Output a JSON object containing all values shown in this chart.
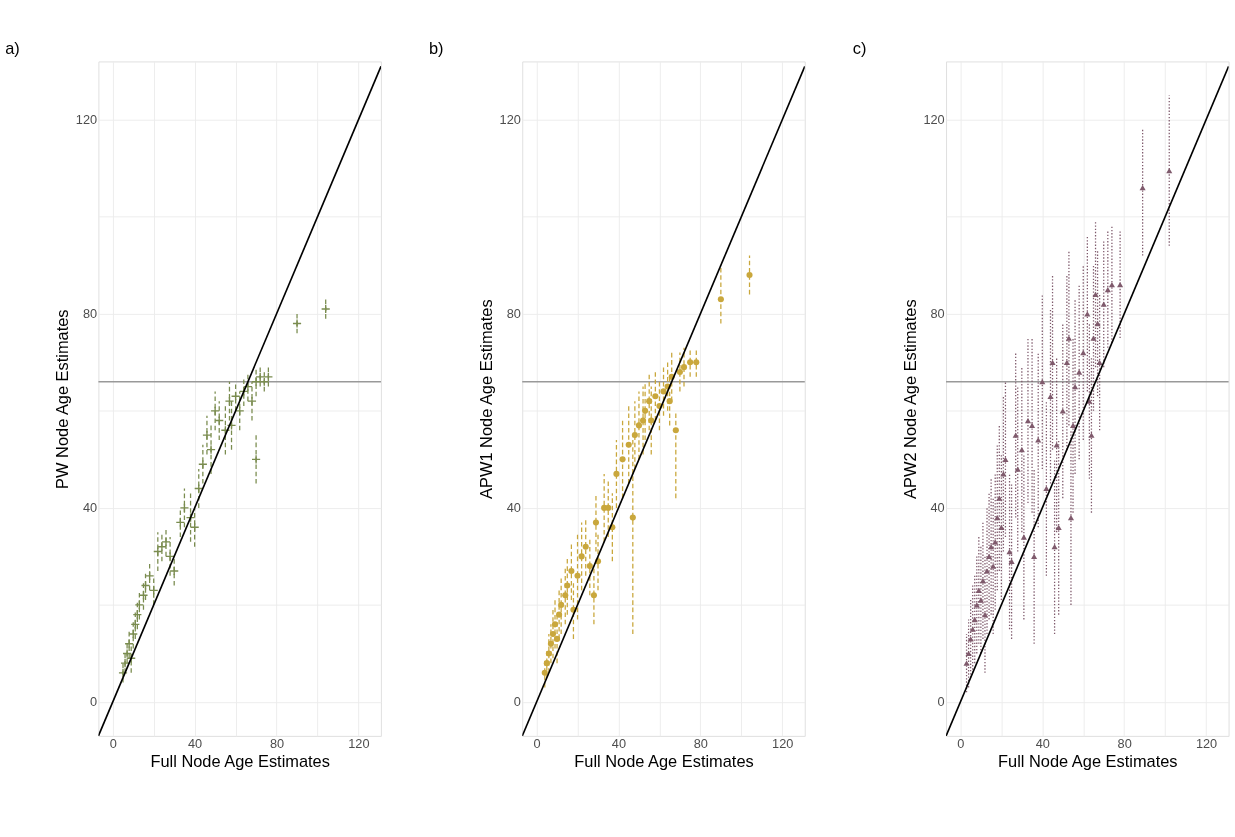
{
  "chart_data": [
    {
      "type": "scatter",
      "title": "a)",
      "xlabel": "Full Node Age Estimates",
      "ylabel": "PW Node Age Estimates",
      "xlim": [
        -7,
        131
      ],
      "ylim": [
        -7,
        132
      ],
      "xticks": [
        0,
        {
          "value": 20,
          "label": null
        },
        40,
        {
          "value": 60,
          "label": null
        },
        80,
        {
          "value": 100,
          "label": null
        },
        120
      ],
      "yticks": [
        0,
        {
          "value": 20,
          "label": null
        },
        40,
        {
          "value": 60,
          "label": null
        },
        80,
        {
          "value": 100,
          "label": null
        },
        120
      ],
      "grid": true,
      "ref_lines": [
        {
          "axis": "y",
          "value": 66,
          "color": "#999999"
        }
      ],
      "series": [
        {
          "color": "#7a8c4f",
          "marker": "cross",
          "line_style": "dashed",
          "x": [
            5,
            6,
            7,
            8,
            9,
            10,
            11,
            12,
            13,
            15,
            16,
            18,
            20,
            22,
            24,
            26,
            28,
            30,
            33,
            35,
            38,
            40,
            42,
            44,
            46,
            48,
            50,
            52,
            55,
            57,
            58,
            60,
            62,
            64,
            66,
            68,
            70,
            72,
            74,
            76,
            70,
            90,
            104
          ],
          "values": [
            6,
            8,
            10,
            12,
            9,
            14,
            16,
            18,
            20,
            22,
            24,
            26,
            23,
            31,
            32,
            33,
            30,
            27,
            37,
            40,
            38,
            36,
            44,
            49,
            55,
            52,
            60,
            58,
            56,
            62,
            57,
            63,
            60,
            64,
            65,
            62,
            66,
            67,
            66,
            67,
            50,
            78,
            81
          ],
          "errors": [
            2,
            2,
            2,
            3,
            3,
            3,
            3,
            3,
            3,
            3,
            3,
            3,
            3,
            4,
            3,
            3,
            4,
            3,
            3,
            4,
            5,
            4,
            4,
            4,
            4,
            5,
            4,
            4,
            5,
            4,
            5,
            3,
            4,
            3,
            3,
            4,
            3,
            2,
            2,
            2,
            [
              45,
              55
            ],
            2,
            2
          ]
        },
        {
          "type": "line",
          "color": "#000000",
          "x": [
            -7,
            131
          ],
          "values": [
            -7,
            131
          ]
        }
      ]
    },
    {
      "type": "scatter",
      "title": "b)",
      "xlabel": "Full Node Age Estimates",
      "ylabel": "APW1 Node Age Estimates",
      "xlim": [
        -7,
        131
      ],
      "ylim": [
        -7,
        132
      ],
      "xticks": [
        0,
        {
          "value": 20,
          "label": null
        },
        40,
        {
          "value": 60,
          "label": null
        },
        80,
        {
          "value": 100,
          "label": null
        },
        120
      ],
      "yticks": [
        0,
        {
          "value": 20,
          "label": null
        },
        40,
        {
          "value": 60,
          "label": null
        },
        80,
        {
          "value": 100,
          "label": null
        },
        120
      ],
      "grid": true,
      "ref_lines": [
        {
          "axis": "y",
          "value": 66,
          "color": "#999999"
        }
      ],
      "series": [
        {
          "color": "#c9a73c",
          "marker": "circle",
          "line_style": "dashed",
          "x": [
            4,
            5,
            6,
            7,
            8,
            9,
            10,
            11,
            12,
            14,
            15,
            17,
            18,
            20,
            22,
            24,
            26,
            28,
            29,
            30,
            33,
            35,
            37,
            39,
            42,
            45,
            47,
            48,
            50,
            52,
            53,
            55,
            56,
            58,
            60,
            62,
            64,
            65,
            66,
            68,
            70,
            72,
            75,
            78,
            90,
            104
          ],
          "values": [
            6,
            8,
            10,
            12,
            14,
            16,
            13,
            18,
            20,
            22,
            24,
            27,
            19,
            26,
            30,
            32,
            28,
            22,
            37,
            29,
            40,
            40,
            36,
            47,
            50,
            53,
            38,
            55,
            57,
            58,
            60,
            62,
            58,
            63,
            61,
            64,
            65,
            62,
            67,
            56,
            68,
            69,
            70,
            70,
            83,
            88
          ],
          "errors": [
            3,
            3,
            4,
            4,
            5,
            5,
            5,
            5,
            6,
            6,
            6,
            6,
            6,
            9,
            7,
            6,
            6,
            6,
            6,
            6,
            7,
            6,
            7,
            7,
            8,
            8,
            [
              14,
              55
            ],
            7,
            7,
            7,
            6,
            6,
            7,
            5,
            5,
            5,
            5,
            5,
            5,
            [
              42,
              60
            ],
            4,
            4,
            3,
            3,
            [
              78,
              90
            ],
            [
              84,
              92
            ]
          ]
        },
        {
          "type": "line",
          "color": "#000000",
          "x": [
            -7,
            131
          ],
          "values": [
            -7,
            131
          ]
        }
      ]
    },
    {
      "type": "scatter",
      "title": "c)",
      "xlabel": "Full Node Age Estimates",
      "ylabel": "APW2 Node Age Estimates",
      "xlim": [
        -7,
        131
      ],
      "ylim": [
        -7,
        132
      ],
      "xticks": [
        0,
        {
          "value": 20,
          "label": null
        },
        40,
        {
          "value": 60,
          "label": null
        },
        80,
        {
          "value": 100,
          "label": null
        },
        120
      ],
      "yticks": [
        0,
        {
          "value": 20,
          "label": null
        },
        40,
        {
          "value": 60,
          "label": null
        },
        80,
        {
          "value": 100,
          "label": null
        },
        120
      ],
      "grid": true,
      "ref_lines": [
        {
          "axis": "y",
          "value": 66,
          "color": "#999999"
        }
      ],
      "series": [
        {
          "color": "#7f5a6c",
          "marker": "triangle",
          "line_style": "dotted",
          "x": [
            3,
            4,
            5,
            6,
            7,
            8,
            9,
            10,
            11,
            12,
            13,
            14,
            15,
            16,
            17,
            18,
            19,
            20,
            21,
            22,
            24,
            25,
            27,
            28,
            30,
            31,
            33,
            35,
            36,
            38,
            40,
            42,
            44,
            45,
            46,
            47,
            48,
            50,
            52,
            53,
            54,
            55,
            56,
            58,
            60,
            62,
            63,
            64,
            65,
            66,
            67,
            68,
            70,
            72,
            74,
            78,
            89,
            102
          ],
          "values": [
            8,
            10,
            13,
            15,
            17,
            20,
            23,
            21,
            25,
            18,
            27,
            30,
            32,
            28,
            33,
            38,
            42,
            36,
            47,
            50,
            31,
            29,
            55,
            48,
            52,
            34,
            58,
            57,
            30,
            54,
            66,
            44,
            63,
            70,
            32,
            53,
            36,
            60,
            70,
            75,
            38,
            57,
            65,
            68,
            72,
            80,
            62,
            55,
            75,
            84,
            78,
            70,
            82,
            85,
            86,
            86,
            106,
            109.5
          ],
          "errors": [
            6,
            7,
            8,
            9,
            9,
            10,
            11,
            11,
            12,
            12,
            13,
            13,
            14,
            14,
            14,
            15,
            15,
            15,
            16,
            16,
            16,
            16,
            17,
            17,
            17,
            17,
            17,
            18,
            18,
            18,
            18,
            18,
            18,
            18,
            18,
            18,
            18,
            18,
            18,
            18,
            18,
            18,
            18,
            18,
            18,
            16,
            16,
            16,
            15,
            15,
            15,
            14,
            13,
            12,
            12,
            11,
            [
              92,
              118
            ],
            [
              94,
              125
            ]
          ]
        },
        {
          "type": "line",
          "color": "#000000",
          "x": [
            -7,
            131
          ],
          "values": [
            -7,
            131
          ]
        }
      ]
    }
  ]
}
